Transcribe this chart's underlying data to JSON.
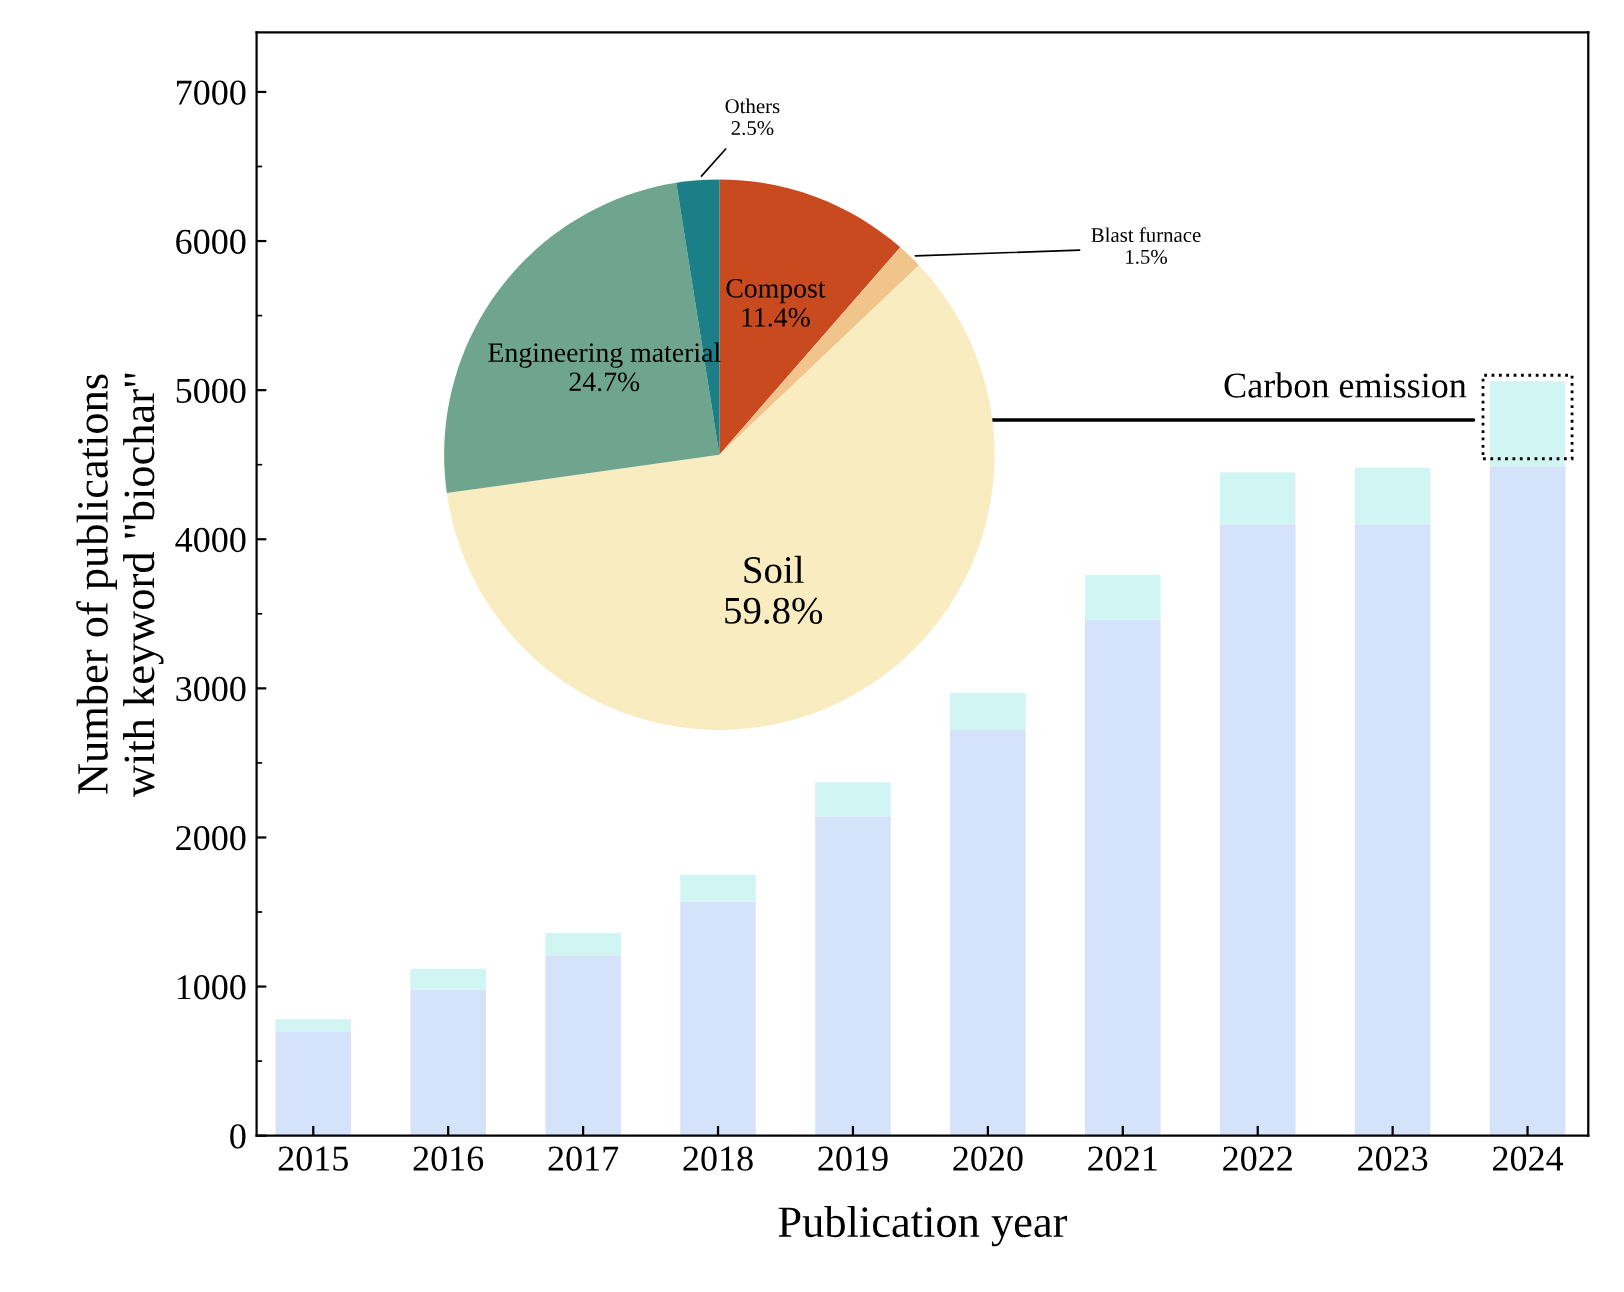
{
  "chart_data": [
    {
      "type": "bar",
      "stacked": true,
      "xlabel": "Publication year",
      "ylabel": "Number of publications\nwith keyword \"biochar\"",
      "categories": [
        "2015",
        "2016",
        "2017",
        "2018",
        "2019",
        "2020",
        "2021",
        "2022",
        "2023",
        "2024"
      ],
      "series": [
        {
          "color": "#d4e3fa",
          "values": [
            700,
            980,
            1210,
            1570,
            2140,
            2720,
            3460,
            4100,
            4100,
            4490
          ]
        },
        {
          "color": "#d0f5f3",
          "values": [
            80,
            140,
            150,
            180,
            230,
            250,
            300,
            350,
            380,
            570
          ]
        }
      ],
      "ylim": [
        0,
        7400
      ],
      "yticks": [
        0,
        1000,
        2000,
        3000,
        4000,
        5000,
        6000,
        7000
      ],
      "grid": false,
      "legend": false,
      "annotations": [
        "Carbon emission"
      ]
    },
    {
      "type": "pie",
      "categories": [
        "Compost",
        "Blast furnace",
        "Soil",
        "Engineering material",
        "Others"
      ],
      "values": [
        11.4,
        1.5,
        59.8,
        24.7,
        2.5
      ],
      "value_labels": [
        "11.4%",
        "1.5%",
        "59.8%",
        "24.7%",
        "2.5%"
      ],
      "colors": [
        "#c94a1f",
        "#f0c48a",
        "#f8ecc0",
        "#6fa58e",
        "#1a7f86"
      ]
    }
  ]
}
